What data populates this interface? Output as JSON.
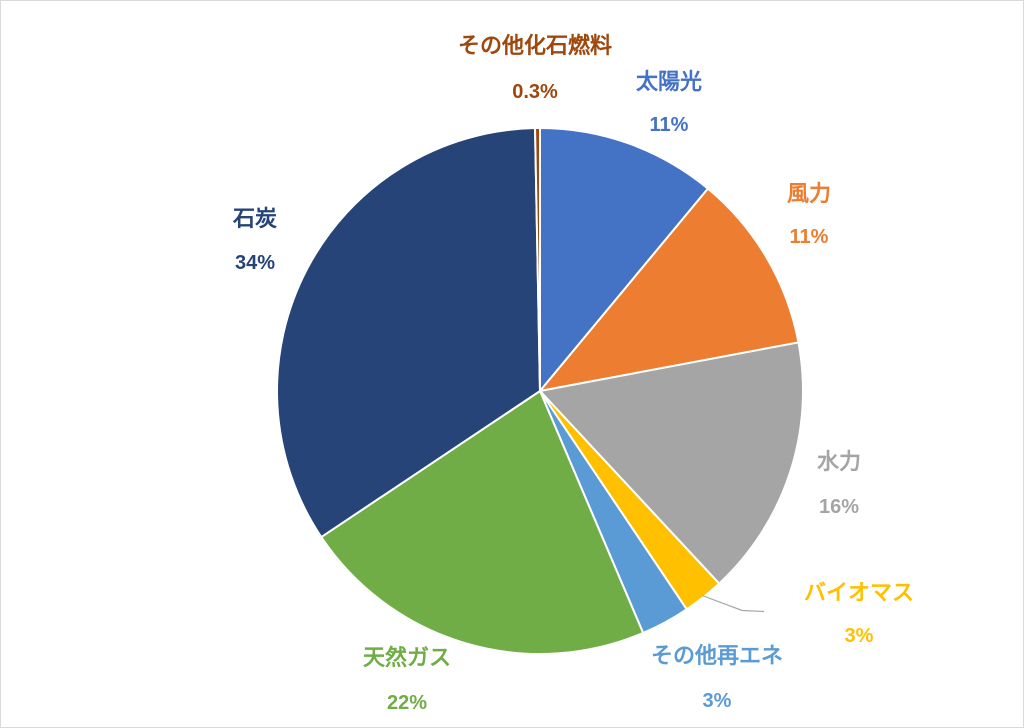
{
  "chart_data": {
    "type": "pie",
    "title": "",
    "slices": [
      {
        "label": "太陽光",
        "value": 11,
        "pct_label": "11%",
        "color": "#4472C4"
      },
      {
        "label": "風力",
        "value": 11,
        "pct_label": "11%",
        "color": "#ED7D31"
      },
      {
        "label": "水力",
        "value": 16,
        "pct_label": "16%",
        "color": "#A5A5A5"
      },
      {
        "label": "バイオマス",
        "value": 2.5,
        "pct_label": "3%",
        "color": "#FFC000"
      },
      {
        "label": "その他再エネ",
        "value": 3,
        "pct_label": "3%",
        "color": "#5B9BD5"
      },
      {
        "label": "天然ガス",
        "value": 22,
        "pct_label": "22%",
        "color": "#70AD47"
      },
      {
        "label": "石炭",
        "value": 34,
        "pct_label": "34%",
        "color": "#264478"
      },
      {
        "label": "その他化石燃料",
        "value": 0.3,
        "pct_label": "0.3%",
        "color": "#9E480E"
      }
    ]
  }
}
